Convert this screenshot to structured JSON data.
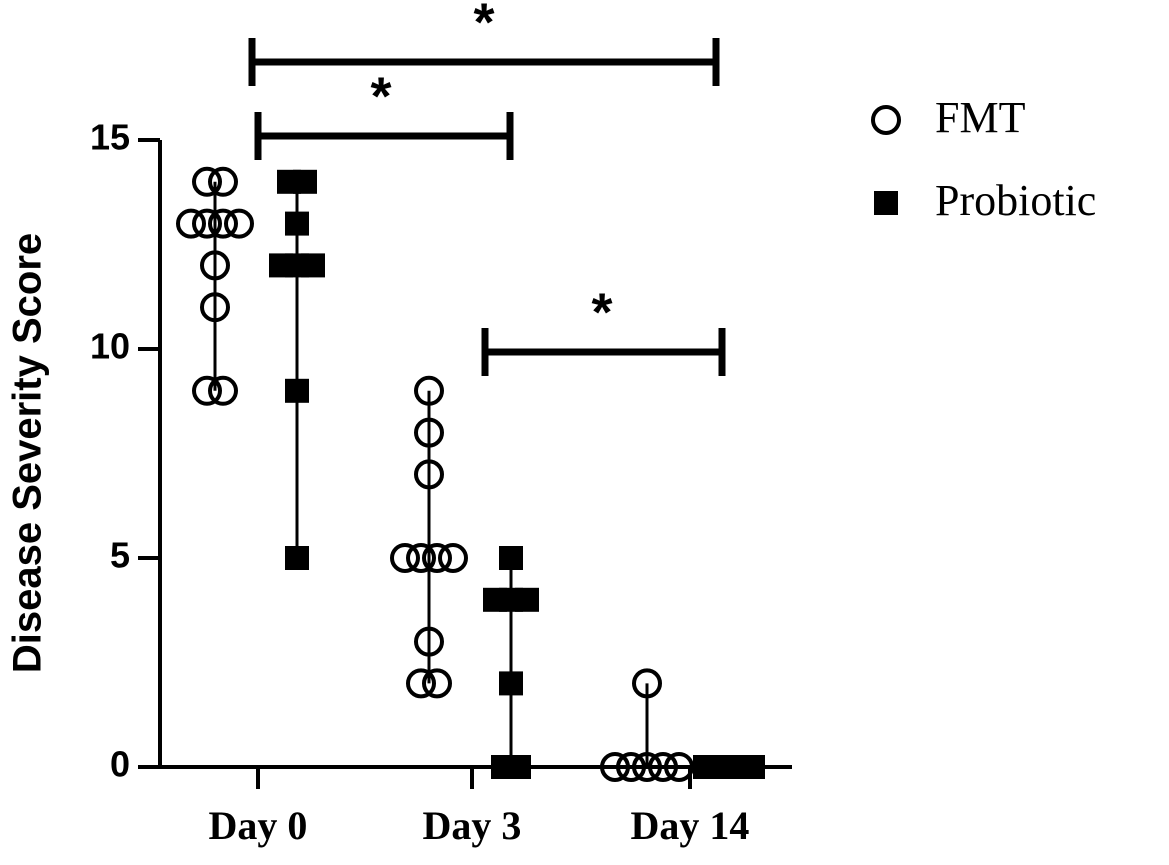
{
  "chart_data": {
    "type": "dot",
    "y_label": "Disease Severity Score",
    "categories": [
      "Day 0",
      "Day 3",
      "Day 14"
    ],
    "series": [
      {
        "name": "FMT",
        "marker": "circle",
        "color": "#000000",
        "values": [
          [
            14,
            14,
            13,
            13,
            13,
            13,
            12,
            11,
            9,
            9
          ],
          [
            9,
            8,
            7,
            5,
            5,
            5,
            5,
            3,
            2,
            2
          ],
          [
            2,
            0,
            0,
            0,
            0,
            0
          ]
        ]
      },
      {
        "name": "Probiotic",
        "marker": "square",
        "color": "#000000",
        "values": [
          [
            14,
            14,
            13,
            12,
            12,
            12,
            9,
            5
          ],
          [
            5,
            4,
            4,
            4,
            2,
            0,
            0
          ],
          [
            0,
            0,
            0,
            0
          ]
        ]
      }
    ],
    "ylim": [
      0,
      15
    ],
    "yticks": [
      0,
      5,
      10,
      15
    ],
    "annotations": [
      "*",
      "*",
      "*"
    ]
  }
}
